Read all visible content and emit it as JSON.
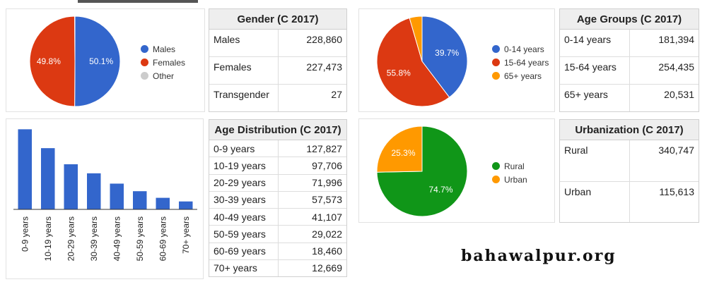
{
  "colors": {
    "blue": "#3366cc",
    "red": "#dc3912",
    "orange": "#ff9900",
    "green": "#109618",
    "grey": "#cccccc"
  },
  "brand": "bahawalpur.org",
  "chart_data": [
    {
      "type": "pie",
      "id": "gender",
      "categories": [
        "Males",
        "Females",
        "Other"
      ],
      "values": [
        50.1,
        49.8,
        0.1
      ],
      "labels": [
        "50.1%",
        "49.8%",
        ""
      ],
      "colors": [
        "#3366cc",
        "#dc3912",
        "#cccccc"
      ],
      "legend": "right"
    },
    {
      "type": "pie",
      "id": "age_groups",
      "categories": [
        "0-14 years",
        "15-64 years",
        "65+ years"
      ],
      "values": [
        39.7,
        55.8,
        4.5
      ],
      "labels": [
        "39.7%",
        "55.8%",
        ""
      ],
      "colors": [
        "#3366cc",
        "#dc3912",
        "#ff9900"
      ],
      "legend": "right"
    },
    {
      "type": "bar",
      "id": "age_distribution",
      "categories": [
        "0-9 years",
        "10-19 years",
        "20-29 years",
        "30-39 years",
        "40-49 years",
        "50-59 years",
        "60-69 years",
        "70+ years"
      ],
      "values": [
        127827,
        97706,
        71996,
        57573,
        41107,
        29022,
        18460,
        12669
      ],
      "ylim": [
        0,
        135000
      ],
      "color": "#3366cc",
      "legend": "none"
    },
    {
      "type": "pie",
      "id": "urbanization",
      "categories": [
        "Rural",
        "Urban"
      ],
      "values": [
        74.7,
        25.3
      ],
      "labels": [
        "74.7%",
        "25.3%"
      ],
      "colors": [
        "#109618",
        "#ff9900"
      ],
      "legend": "right"
    },
    {
      "type": "table",
      "id": "gender_table",
      "title": "Gender (C 2017)",
      "rows": [
        [
          "Males",
          "228,860"
        ],
        [
          "Females",
          "227,473"
        ],
        [
          "Transgender",
          "27"
        ]
      ]
    },
    {
      "type": "table",
      "id": "age_groups_table",
      "title": "Age Groups (C 2017)",
      "rows": [
        [
          "0-14 years",
          "181,394"
        ],
        [
          "15-64 years",
          "254,435"
        ],
        [
          "65+ years",
          "20,531"
        ]
      ]
    },
    {
      "type": "table",
      "id": "age_distribution_table",
      "title": "Age Distribution (C 2017)",
      "rows": [
        [
          "0-9 years",
          "127,827"
        ],
        [
          "10-19 years",
          "97,706"
        ],
        [
          "20-29 years",
          "71,996"
        ],
        [
          "30-39 years",
          "57,573"
        ],
        [
          "40-49 years",
          "41,107"
        ],
        [
          "50-59 years",
          "29,022"
        ],
        [
          "60-69 years",
          "18,460"
        ],
        [
          "70+ years",
          "12,669"
        ]
      ]
    },
    {
      "type": "table",
      "id": "urbanization_table",
      "title": "Urbanization (C 2017)",
      "rows": [
        [
          "Rural",
          "340,747"
        ],
        [
          "Urban",
          "115,613"
        ]
      ]
    }
  ]
}
